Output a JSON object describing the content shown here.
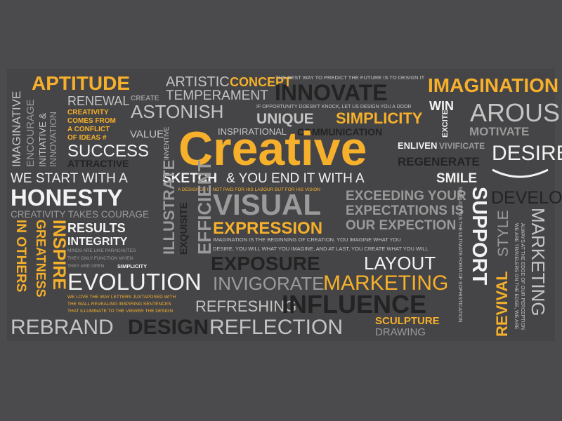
{
  "palette": {
    "background": "#4b4b4d",
    "yellow": "#f6b02b",
    "white": "#f2f2f2",
    "light_gray": "#c4c4c4",
    "mid_gray": "#9a9a9a",
    "dark": "#232324"
  },
  "words": {
    "aptitude": "APTITUDE",
    "artistic": "ARTISTIC",
    "concept": "CONCEPT",
    "predict_quote": "THE BEST WAY TO PREDICT THE FUTURE IS TO DESIGN IT",
    "imagination": "IMAGINATION",
    "renewal": "RENEWAL",
    "create": "CREATE",
    "temperament": "TEMPERAMENT",
    "innovate": "INNOVATE",
    "win": "WIN",
    "arouse": "AROUSE",
    "imaginative": "IMAGINATIVE",
    "encourage": "ENCOURAGE",
    "initiative": "INITIATIVE &",
    "innovation": "INNOVATION",
    "creativity_line1": "CREATIVITY",
    "creativity_line2": "COMES FROM",
    "creativity_line3": "A CONFLICT",
    "creativity_line4": "OF IDEAS #",
    "astonish": "ASTONISH",
    "opportunity_quote": "IF OPPORTUNITY DOESN'T KNOCK, LET US DESIGN YOU A DOOR",
    "unique": "UNIQUE",
    "simplicity_big": "SIMPLICITY",
    "excite": "EXCITE",
    "motivate": "MOTIVATE",
    "value": "VALUE",
    "inventive": "INVENTIVE",
    "inspirational": "INSPIRATIONAL",
    "communication": "COMMUNICATION",
    "creative": "Creative",
    "success": "SUCCESS",
    "attractive": "ATTRACTIVE",
    "enliven": "ENLIVEN",
    "vivificate": "VIVIFICATE",
    "regenerate": "REGENERATE",
    "desire": "DESIRE",
    "sketch_part1": "WE START WITH A",
    "sketch_part2": "SKETCH",
    "sketch_part3": "& YOU END IT WITH A",
    "sketch_part4": "SMILE",
    "honesty": "HONESTY",
    "labour_quote": "A DESIGNER IS NOT PAID FOR HIS LABOUR BUT FOR HIS VISION",
    "illustrate": "ILLUSTRATE",
    "exquisite": "EXQUISITE",
    "efficient": "EFFICIENT",
    "visual": "VISUAL",
    "exceeding_line1": "EXCEEDING YOUR",
    "exceeding_line2": "EXPECTATIONS IS",
    "exceeding_line3": "OUR EXPECTION",
    "sophistication_quote": "SIMPLICITY IS THE ULTIMATE FORM OF SOPHISTICATION",
    "support": "SUPPORT",
    "develop": "DEVELOP",
    "style": "STYLE",
    "marketing_vertical": "MARKETING",
    "revival": "REVIVAL",
    "travelers_line1": "WE ARE TRAVELERS ON THE EDGE, WE ARE",
    "travelers_line2": "ALWAYS AT THE EDGE OF OUR PERCEPTION",
    "creativity_courage": "CREATIVITY TAKES COURAGE",
    "inspire": "INSPIRE",
    "greatness": "GREATNESS",
    "in_others": "IN OTHERS",
    "results": "RESULTS",
    "integrity": "INTEGRITY",
    "expression": "EXPRESSION",
    "imagination_quote_line1": "IMAGINATION IS THE BEGINNING OF CREATION. YOU IMAGINE WHAT YOU",
    "imagination_quote_line2": "DESIRE, YOU WILL WHAT YOU IMAGINE, AND AT LAST, YOU CREATE WHAT YOU WILL",
    "minds_line1": "MINDS ARE LIKE PARACHUTES",
    "minds_line2": "THEY ONLY FUNCTION WHEN",
    "minds_line3": "THEY ARE OPEN",
    "simplicity_small": "SIMPLICITY",
    "exposure": "EXPOSURE",
    "layout": "LAYOUT",
    "evolution": "EVOLUTION",
    "invigorate": "INVIGORATE",
    "marketing": "MARKETING",
    "letters_line1": "WE LOVE THE WAY LETTERS JUXTAPOSED WITH",
    "letters_line2": "THE WALL REVEALING INSPIRING SENTENCES",
    "letters_line3": "THAT ILLUMINATE TO THE VIEWER THE DESIGN",
    "refreshing": "REFRESHING",
    "influence": "INFLUENCE",
    "rebrand": "REBRAND",
    "design": "DESIGN",
    "reflection": "REFLECTION",
    "sculpture": "SCULPTURE",
    "drawing": "DRAWING"
  }
}
